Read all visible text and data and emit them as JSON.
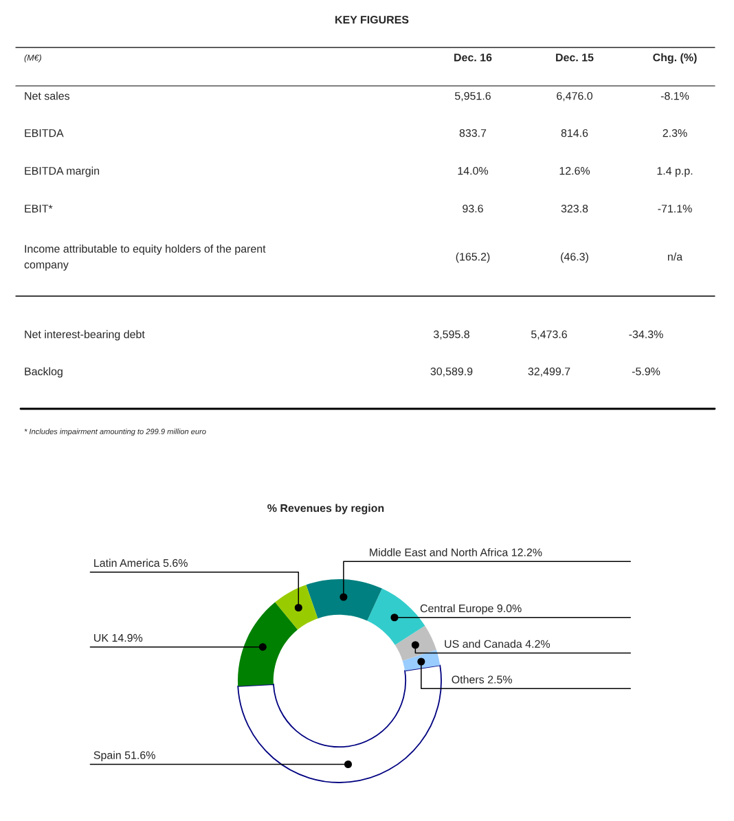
{
  "chart_data": [
    {
      "type": "other",
      "title": "KEY FIGURES",
      "categories": [
        "(M€)",
        "Dec. 16",
        "Dec. 15",
        "Chg. (%)"
      ],
      "y_categories": [
        "Net sales",
        "EBITDA",
        "EBITDA margin",
        "EBIT*",
        "Income attributable to equity holders of the parent\ncompany"
      ],
      "cell_labels": [
        [
          "5,951.6",
          "6,476.0",
          "-8.1%"
        ],
        [
          "833.7",
          "814.6",
          "2.3%"
        ],
        [
          "14.0%",
          "12.6%",
          "1.4 p.p."
        ],
        [
          "93.6",
          "323.8",
          "-71.1%"
        ],
        [
          "(165.2)",
          "(46.3)",
          "n/a"
        ]
      ]
    },
    {
      "type": "other",
      "y_categories": [
        "Net interest-bearing debt",
        "Backlog"
      ],
      "cell_labels": [
        [
          "3,595.8",
          "5,473.6",
          "-34.3%"
        ],
        [
          "30,589.9",
          "32,499.7",
          "-5.9%"
        ]
      ],
      "annotations": [
        "* Includes impairment amounting to 299.9 million euro"
      ]
    },
    {
      "type": "donut",
      "title": "% Revenues by region",
      "categories": [
        "Spain",
        "Others",
        "US and Canada",
        "Central Europe",
        "Middle East and North Africa",
        "Latin America",
        "UK"
      ],
      "values": [
        51.6,
        2.5,
        4.2,
        9.0,
        12.2,
        5.6,
        14.9
      ],
      "value_labels": [
        "51.6%",
        "2.5%",
        "4.2%",
        "9.0%",
        "12.2%",
        "5.6%",
        "14.9%"
      ],
      "colors": [
        "#ffffff",
        "#99ccff",
        "#c0c0c0",
        "#33cccc",
        "#008080",
        "#99cc00",
        "#008000"
      ]
    }
  ]
}
